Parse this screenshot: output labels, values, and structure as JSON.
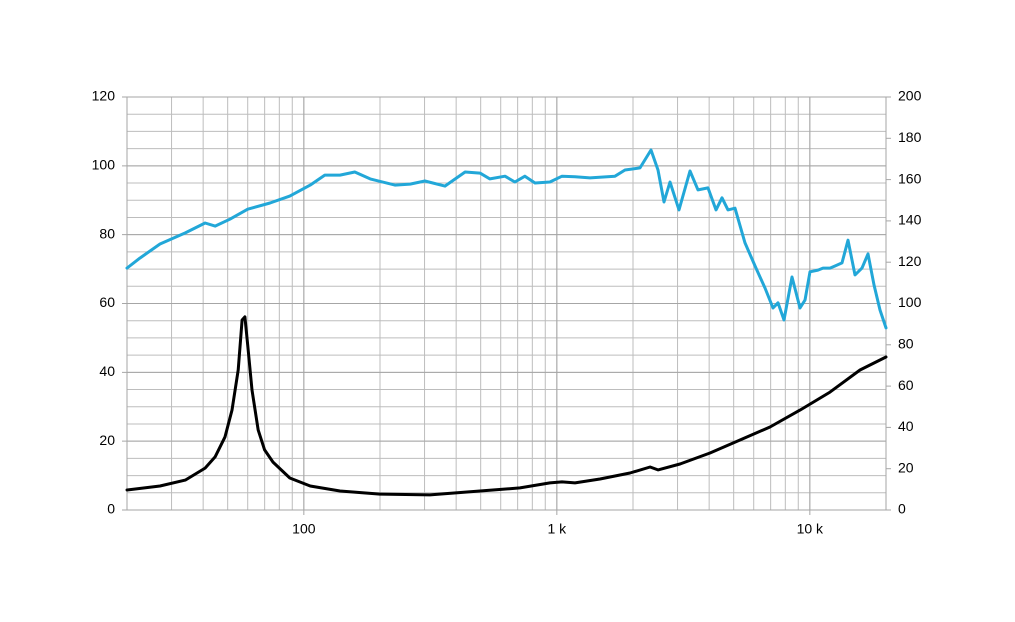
{
  "chart_data": {
    "type": "line",
    "log_x": true,
    "grid": true,
    "y_minor_step": 5,
    "xlim": [
      20,
      20000
    ],
    "xticks": [
      100,
      {
        "value": 1000,
        "label": "1 k"
      },
      {
        "value": 10000,
        "label": "10 k"
      }
    ],
    "ylim": [
      0,
      120
    ],
    "yticks": [
      0,
      20,
      40,
      60,
      80,
      100,
      120
    ],
    "y2lim": [
      0,
      200
    ],
    "y2ticks": [
      0,
      20,
      40,
      60,
      80,
      100,
      120,
      140,
      160,
      180,
      200
    ],
    "series": [
      {
        "color": "#22a7d8",
        "x": [
          20,
          22.5,
          27,
          34,
          40.7,
          44.6,
          51,
          60,
          73.5,
          88,
          106,
          121,
          139,
          159,
          183,
          229,
          263,
          301,
          361,
          434,
          497,
          544,
          624,
          683,
          748,
          820,
          939,
          1048,
          1180,
          1352,
          1698,
          1860,
          2132,
          2357,
          2512,
          2653,
          2801,
          3040,
          3360,
          3614,
          3958,
          4258,
          4497,
          4750,
          5062,
          5544,
          6128,
          6650,
          7152,
          7486,
          7906,
          8504,
          9144,
          9570,
          10016,
          10772,
          11272,
          12014,
          12572,
          13400,
          14152,
          15086,
          16076,
          16980,
          17932,
          18938,
          20000
        ],
        "values": [
          70.3,
          73.2,
          77.3,
          80.5,
          83.4,
          82.5,
          84.5,
          87.4,
          89.2,
          91.2,
          94.4,
          97.3,
          97.3,
          98.2,
          96.2,
          94.4,
          94.7,
          95.6,
          94.1,
          98.2,
          97.9,
          96.2,
          97.0,
          95.3,
          97.0,
          95.0,
          95.3,
          97.0,
          96.8,
          96.5,
          97.0,
          98.8,
          99.4,
          104.6,
          98.8,
          89.5,
          95.3,
          87.2,
          98.5,
          93.0,
          93.6,
          87.2,
          90.7,
          87.2,
          87.7,
          77.6,
          70.3,
          64.5,
          58.7,
          60.2,
          55.2,
          67.7,
          58.7,
          61.0,
          69.2,
          69.7,
          70.3,
          70.3,
          70.9,
          71.8,
          78.4,
          68.3,
          70.3,
          74.4,
          65.4,
          58.1,
          52.9
        ]
      },
      {
        "color": "#000000",
        "axis": "y2",
        "x": [
          20,
          27,
          34,
          40.7,
          44.6,
          48.8,
          52,
          55,
          57,
          58.5,
          60,
          62.4,
          66,
          70,
          75.5,
          88,
          106,
          139,
          200,
          315,
          497,
          715,
          939,
          1048,
          1180,
          1481,
          1946,
          2336,
          2512,
          3068,
          4030,
          5296,
          6958,
          9144,
          12014,
          15786,
          20000
        ],
        "values": [
          9.7,
          11.6,
          14.5,
          20.3,
          25.7,
          35.4,
          48.4,
          67.8,
          92,
          93.5,
          79.9,
          58.1,
          38.7,
          29.1,
          23.2,
          15.5,
          11.6,
          9.2,
          7.7,
          7.3,
          9.2,
          10.7,
          13.1,
          13.6,
          13.1,
          15.0,
          17.9,
          20.8,
          19.4,
          22.3,
          27.6,
          33.9,
          40.2,
          48.4,
          57.1,
          67.8,
          74.1
        ]
      }
    ]
  }
}
